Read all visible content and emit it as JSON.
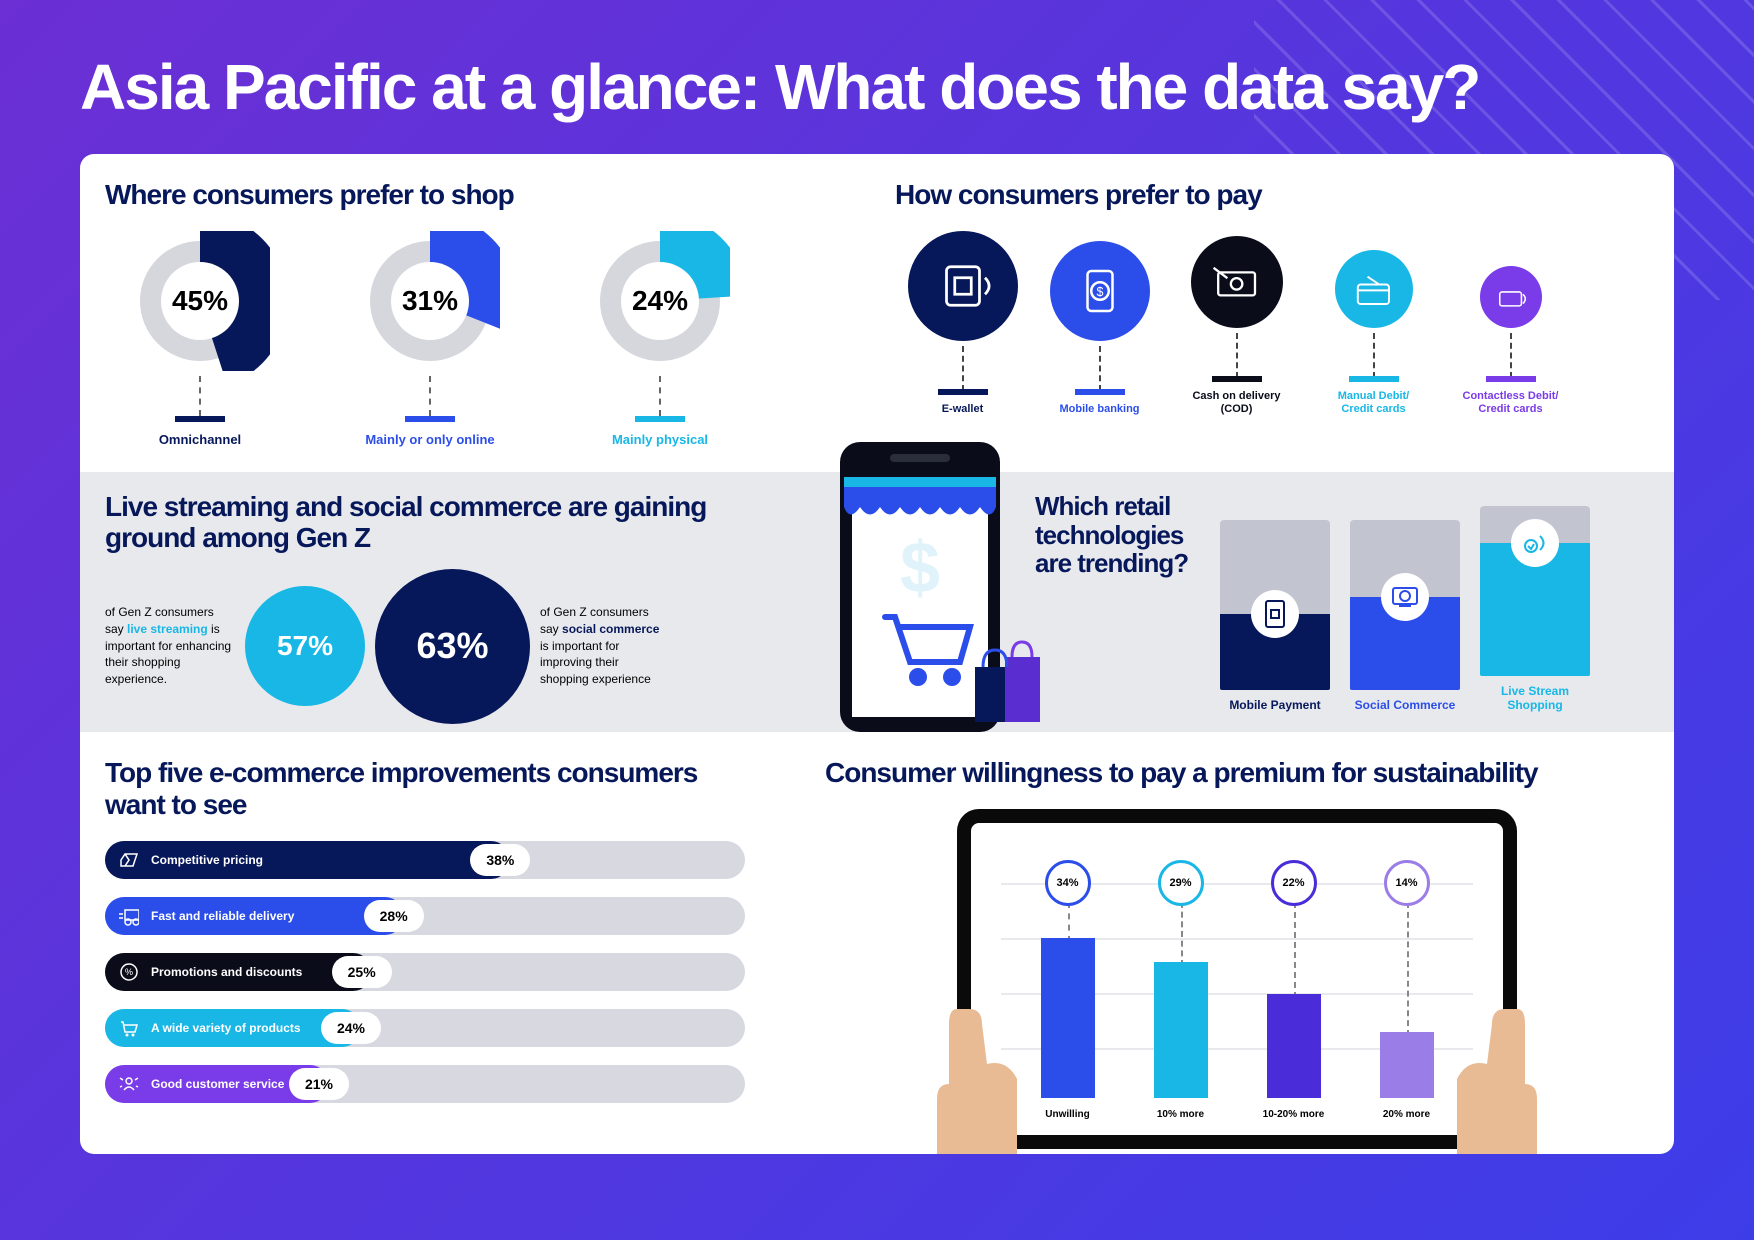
{
  "title": "Asia Pacific at a glance: What does the data say?",
  "colors": {
    "bg_start": "#6b2fd4",
    "bg_end": "#3d3de8",
    "card_bg": "#ffffff",
    "band_bg": "#e8e9ed",
    "heading": "#07185a"
  },
  "shop": {
    "title": "Where consumers prefer to shop",
    "track_color": "#d6d7dd",
    "items": [
      {
        "pct": 45,
        "label": "Omnichannel",
        "color": "#07185a"
      },
      {
        "pct": 31,
        "label": "Mainly or only online",
        "color": "#2b4eea"
      },
      {
        "pct": 24,
        "label": "Mainly physical",
        "color": "#18b7e6"
      }
    ]
  },
  "pay": {
    "title": "How consumers prefer to pay",
    "items": [
      {
        "label": "E-wallet",
        "color": "#07185a",
        "size": 110
      },
      {
        "label": "Mobile banking",
        "color": "#2b4eea",
        "size": 100
      },
      {
        "label": "Cash on delivery\n(COD)",
        "color": "#0a0c1a",
        "size": 92
      },
      {
        "label": "Manual Debit/\nCredit cards",
        "color": "#18b7e6",
        "size": 78
      },
      {
        "label": "Contactless Debit/\nCredit cards",
        "color": "#7a3be8",
        "size": 62
      }
    ]
  },
  "genz": {
    "title": "Live streaming and social commerce are gaining ground among Gen Z",
    "bubbles": [
      {
        "pct": 57,
        "color": "#18b7e6",
        "size": 120,
        "text_before": "of Gen Z consumers say ",
        "highlight": "live streaming",
        "text_after": " is important for enhancing their shopping experience.",
        "highlight_color": "#18b7e6",
        "side": "left"
      },
      {
        "pct": 63,
        "color": "#07185a",
        "size": 155,
        "text_before": "of Gen Z consumers say ",
        "highlight": "social commerce",
        "text_after": " is important for improving their shopping experience",
        "highlight_color": "#07185a",
        "side": "right"
      }
    ]
  },
  "trending": {
    "title": "Which retail technologies are trending?",
    "items": [
      {
        "label": "Mobile Payment",
        "color": "#07185a",
        "fill_pct": 45
      },
      {
        "label": "Social Commerce",
        "color": "#2b4eea",
        "fill_pct": 55
      },
      {
        "label": "Live Stream Shopping",
        "color": "#18b7e6",
        "fill_pct": 78
      }
    ]
  },
  "improvements": {
    "title": "Top five e-commerce improvements consumers want to see",
    "track_color": "#d8d9e0",
    "max_pct_visual": 60,
    "items": [
      {
        "label": "Competitive pricing",
        "pct": 38,
        "color": "#07185a"
      },
      {
        "label": "Fast and reliable delivery",
        "pct": 28,
        "color": "#2b4eea"
      },
      {
        "label": "Promotions and discounts",
        "pct": 25,
        "color": "#0a0c1a"
      },
      {
        "label": "A wide variety of products",
        "pct": 24,
        "color": "#18b7e6"
      },
      {
        "label": "Good customer service",
        "pct": 21,
        "color": "#7a3be8"
      }
    ]
  },
  "sustain": {
    "title": "Consumer willingness to pay a premium for sustainability",
    "max_bar_h": 160,
    "items": [
      {
        "label": "Unwilling",
        "pct": 34,
        "color": "#2b4eea"
      },
      {
        "label": "10% more",
        "pct": 29,
        "color": "#18b7e6"
      },
      {
        "label": "10-20% more",
        "pct": 22,
        "color": "#4a2dd9"
      },
      {
        "label": "20% more",
        "pct": 14,
        "color": "#9b7de8"
      }
    ]
  }
}
